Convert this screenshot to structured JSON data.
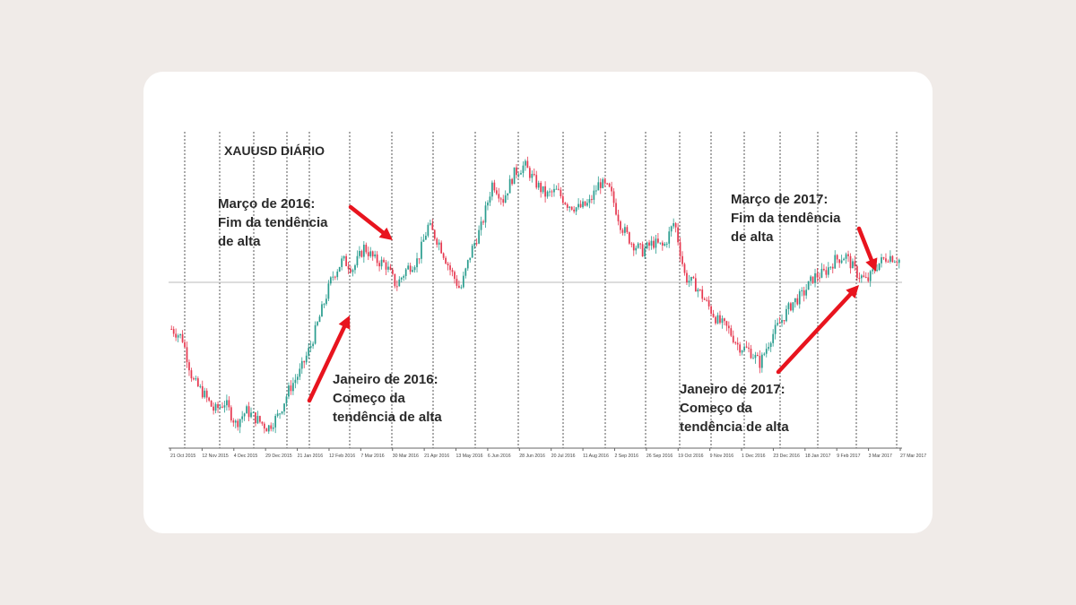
{
  "card": {
    "background": "#ffffff"
  },
  "chart_data": {
    "type": "candlestick",
    "title": "XAUUSD DIÁRIO",
    "colors": {
      "up": "#2a9d8f",
      "down": "#e63950",
      "arrow": "#e8141e",
      "separator": "#555555",
      "baseline": "#bbbbbb"
    },
    "x_tick_labels": [
      "21 Oct 2015",
      "12 Nov 2015",
      "4 Dec 2015",
      "29 Dec 2015",
      "21 Jan 2016",
      "12 Feb 2016",
      "7 Mar 2016",
      "30 Mar 2016",
      "21 Apr 2016",
      "13 May 2016",
      "6 Jun 2016",
      "28 Jun 2016",
      "20 Jul 2016",
      "11 Aug 2016",
      "2 Sep 2016",
      "26 Sep 2016",
      "19 Oct 2016",
      "9 Nov 2016",
      "1 Dec 2016",
      "23 Dec 2016",
      "18 Jan 2017",
      "9 Feb 2017",
      "3 Mar 2017",
      "27 Mar 2017"
    ],
    "approx_price_path": [
      1170,
      1160,
      1110,
      1095,
      1075,
      1085,
      1060,
      1075,
      1065,
      1055,
      1070,
      1100,
      1120,
      1150,
      1190,
      1230,
      1250,
      1240,
      1265,
      1250,
      1245,
      1220,
      1240,
      1250,
      1290,
      1270,
      1240,
      1215,
      1260,
      1290,
      1340,
      1320,
      1350,
      1360,
      1340,
      1325,
      1330,
      1315,
      1310,
      1315,
      1340,
      1330,
      1290,
      1270,
      1260,
      1270,
      1265,
      1295,
      1230,
      1220,
      1200,
      1180,
      1170,
      1150,
      1145,
      1130,
      1160,
      1180,
      1200,
      1210,
      1230,
      1235,
      1250,
      1255,
      1235,
      1225,
      1245,
      1255,
      1250
    ],
    "annotations": [
      {
        "lines": [
          "Março de 2016:",
          "Fim da tendência",
          "de alta"
        ]
      },
      {
        "lines": [
          "Janeiro de 2016:",
          "Começo da",
          "tendência de alta"
        ]
      },
      {
        "lines": [
          "Março de 2017:",
          "Fim da tendência",
          "de alta"
        ]
      },
      {
        "lines": [
          "Janeiro de 2017:",
          "Começo da",
          "tendência de alta"
        ]
      }
    ]
  }
}
